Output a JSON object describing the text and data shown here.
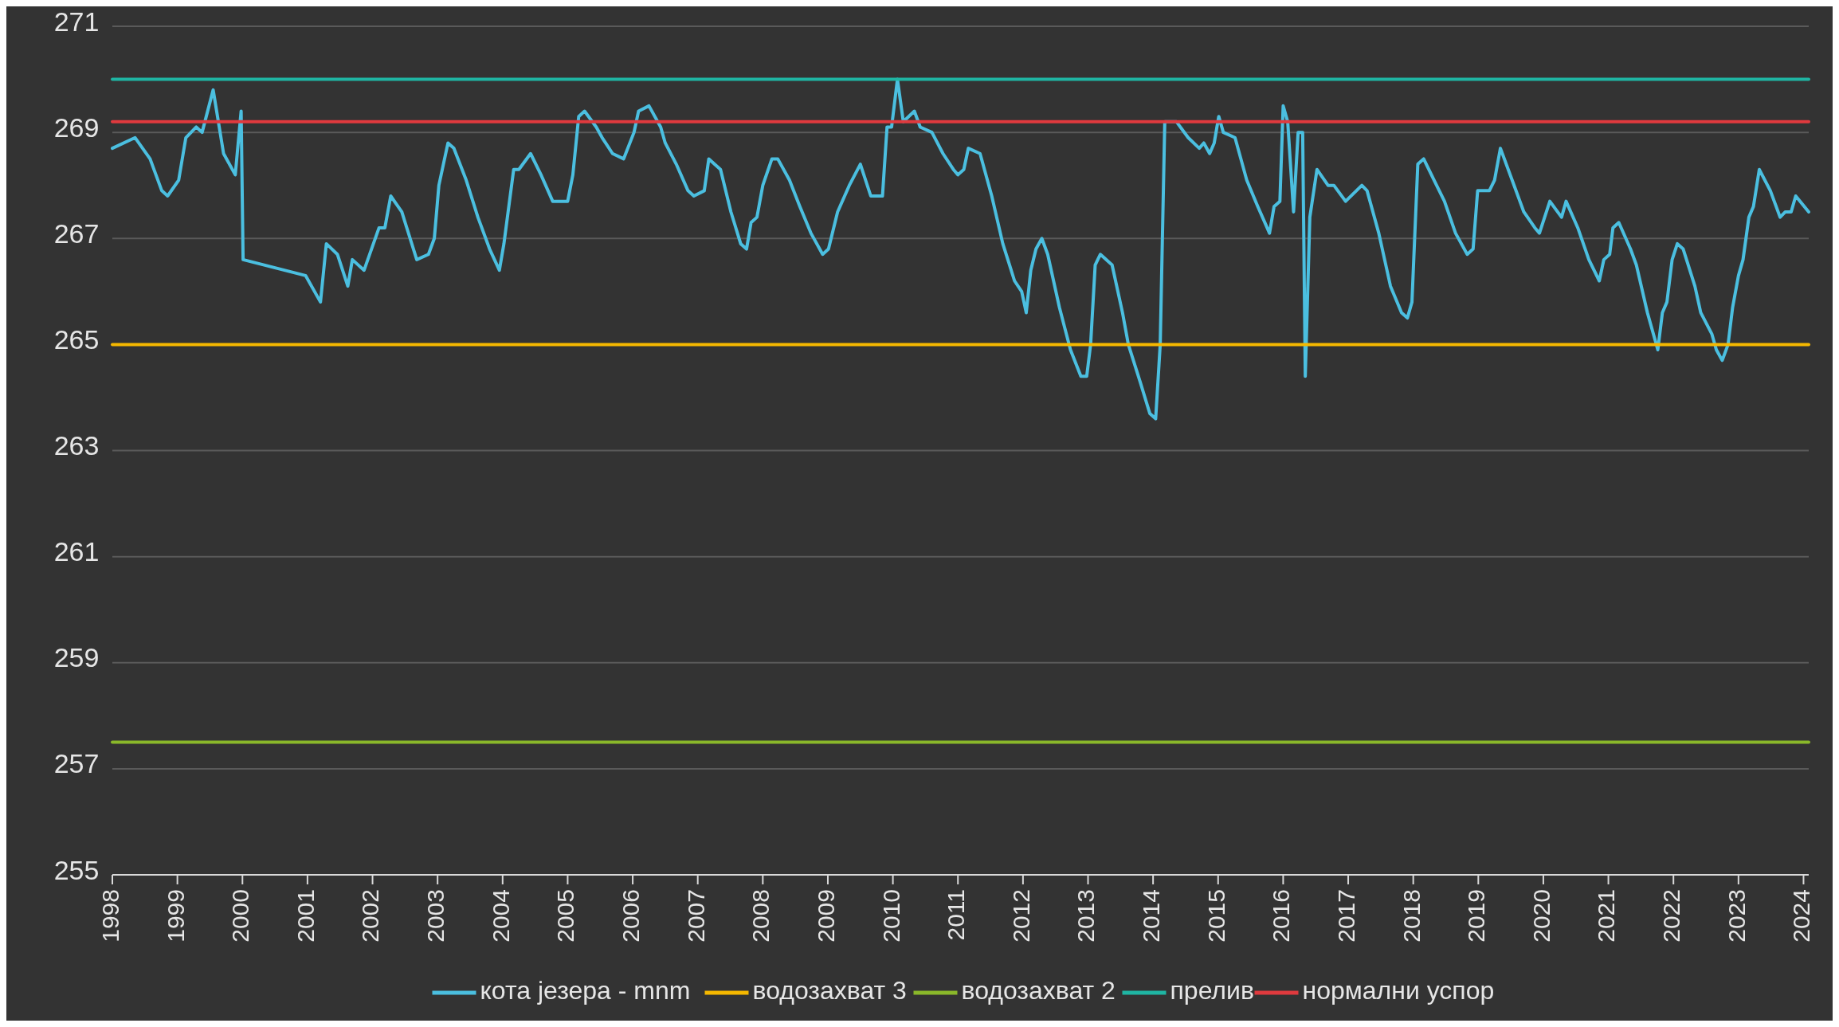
{
  "chart_data": {
    "type": "line",
    "xlim": [
      1998,
      2024.08
    ],
    "xticks": [
      1998,
      1999,
      2000,
      2001,
      2002,
      2003,
      2004,
      2005,
      2006,
      2007,
      2008,
      2009,
      2010,
      2011,
      2012,
      2013,
      2014,
      2015,
      2016,
      2017,
      2018,
      2019,
      2020,
      2021,
      2022,
      2023,
      2024
    ],
    "ylim": [
      255,
      271
    ],
    "yticks": [
      255,
      257,
      259,
      261,
      263,
      265,
      267,
      269,
      271
    ],
    "grid": "y",
    "legend": "bottom",
    "marker": "none",
    "line_style": "solid",
    "series": [
      {
        "name": "кота језера - mnm",
        "color": "#4bbfe0",
        "x": [
          1998,
          1998.35,
          1998.58,
          1998.76,
          1998.85,
          1999.02,
          1999.13,
          1999.29,
          1999.38,
          1999.55,
          1999.71,
          1999.89,
          1999.98,
          2000.01,
          2000.97,
          2001.2,
          2001.29,
          2001.46,
          2001.62,
          2001.69,
          2001.87,
          2002.1,
          2002.19,
          2002.28,
          2002.45,
          2002.68,
          2002.86,
          2002.95,
          2003.02,
          2003.16,
          2003.25,
          2003.44,
          2003.62,
          2003.8,
          2003.95,
          2004.02,
          2004.17,
          2004.25,
          2004.43,
          2004.59,
          2004.77,
          2005,
          2005.08,
          2005.17,
          2005.26,
          2005.44,
          2005.53,
          2005.69,
          2005.86,
          2006.02,
          2006.09,
          2006.25,
          2006.43,
          2006.5,
          2006.67,
          2006.85,
          2006.94,
          2007.1,
          2007.17,
          2007.35,
          2007.51,
          2007.66,
          2007.75,
          2007.82,
          2007.91,
          2008,
          2008.14,
          2008.23,
          2008.41,
          2008.57,
          2008.74,
          2008.92,
          2009.01,
          2009.15,
          2009.33,
          2009.5,
          2009.66,
          2009.84,
          2009.91,
          2009.98,
          2010.07,
          2010.16,
          2010.33,
          2010.42,
          2010.6,
          2010.77,
          2010.93,
          2011,
          2011.09,
          2011.16,
          2011.34,
          2011.52,
          2011.69,
          2011.87,
          2011.98,
          2012.05,
          2012.12,
          2012.2,
          2012.29,
          2012.38,
          2012.56,
          2012.73,
          2012.89,
          2012.98,
          2013.04,
          2013.11,
          2013.19,
          2013.37,
          2013.53,
          2013.62,
          2013.8,
          2013.95,
          2014.04,
          2014.11,
          2014.18,
          2014.36,
          2014.54,
          2014.71,
          2014.78,
          2014.87,
          2014.94,
          2015.01,
          2015.08,
          2015.26,
          2015.44,
          2015.61,
          2015.79,
          2015.86,
          2015.95,
          2016,
          2016.07,
          2016.16,
          2016.23,
          2016.3,
          2016.34,
          2016.41,
          2016.52,
          2016.69,
          2016.78,
          2016.96,
          2017.21,
          2017.29,
          2017.47,
          2017.65,
          2017.82,
          2017.91,
          2017.98,
          2018.07,
          2018.16,
          2018.32,
          2018.48,
          2018.65,
          2018.83,
          2018.92,
          2018.99,
          2019.17,
          2019.25,
          2019.34,
          2019.52,
          2019.7,
          2019.87,
          2019.94,
          2020.1,
          2020.28,
          2020.35,
          2020.53,
          2020.7,
          2020.86,
          2020.93,
          2021.02,
          2021.07,
          2021.16,
          2021.34,
          2021.43,
          2021.6,
          2021.76,
          2021.83,
          2021.9,
          2021.98,
          2022.06,
          2022.15,
          2022.33,
          2022.42,
          2022.59,
          2022.66,
          2022.75,
          2022.84,
          2022.91,
          2023,
          2023.07,
          2023.16,
          2023.23,
          2023.32,
          2023.49,
          2023.64,
          2023.72,
          2023.81,
          2023.88,
          2024.08
        ],
        "values": [
          268.7,
          268.9,
          268.5,
          267.9,
          267.8,
          268.1,
          268.9,
          269.1,
          269.0,
          269.8,
          268.6,
          268.2,
          269.4,
          266.6,
          266.3,
          265.8,
          266.9,
          266.7,
          266.1,
          266.6,
          266.4,
          267.2,
          267.2,
          267.8,
          267.5,
          266.6,
          266.7,
          267.0,
          268.0,
          268.8,
          268.7,
          268.1,
          267.4,
          266.8,
          266.4,
          266.9,
          268.3,
          268.3,
          268.6,
          268.2,
          267.7,
          267.7,
          268.2,
          269.3,
          269.4,
          269.1,
          268.9,
          268.6,
          268.5,
          269.0,
          269.4,
          269.5,
          269.1,
          268.8,
          268.4,
          267.9,
          267.8,
          267.9,
          268.5,
          268.3,
          267.5,
          266.9,
          266.8,
          267.3,
          267.4,
          268.0,
          268.5,
          268.5,
          268.1,
          267.6,
          267.1,
          266.7,
          266.8,
          267.5,
          268.0,
          268.4,
          267.8,
          267.8,
          269.1,
          269.1,
          270.0,
          269.2,
          269.4,
          269.1,
          269.0,
          268.6,
          268.3,
          268.2,
          268.3,
          268.7,
          268.6,
          267.8,
          266.9,
          266.2,
          266.0,
          265.6,
          266.4,
          266.8,
          267.0,
          266.7,
          265.7,
          264.9,
          264.4,
          264.4,
          265.0,
          266.5,
          266.7,
          266.5,
          265.6,
          265.0,
          264.3,
          263.7,
          263.6,
          265.0,
          269.2,
          269.2,
          268.9,
          268.7,
          268.8,
          268.6,
          268.8,
          269.3,
          269.0,
          268.9,
          268.1,
          267.6,
          267.1,
          267.6,
          267.7,
          269.5,
          269.2,
          267.5,
          269.0,
          269.0,
          264.4,
          267.4,
          268.3,
          268.0,
          268.0,
          267.7,
          268.0,
          267.9,
          267.1,
          266.1,
          265.6,
          265.5,
          265.8,
          268.4,
          268.5,
          268.1,
          267.7,
          267.1,
          266.7,
          266.8,
          267.9,
          267.9,
          268.1,
          268.7,
          268.1,
          267.5,
          267.2,
          267.1,
          267.7,
          267.4,
          267.7,
          267.2,
          266.6,
          266.2,
          266.6,
          266.7,
          267.2,
          267.3,
          266.8,
          266.5,
          265.6,
          264.9,
          265.6,
          265.8,
          266.6,
          266.9,
          266.8,
          266.1,
          265.6,
          265.2,
          264.9,
          264.7,
          265.0,
          265.7,
          266.3,
          266.6,
          267.4,
          267.6,
          268.3,
          267.9,
          267.4,
          267.5,
          267.5,
          267.8,
          267.5
        ]
      },
      {
        "name": "водозахват 3",
        "color": "#f5b800",
        "x": [
          1998,
          2024.08
        ],
        "values": [
          265,
          265
        ]
      },
      {
        "name": "водозахват 2",
        "color": "#8ab82a",
        "x": [
          1998,
          2024.08
        ],
        "values": [
          257.5,
          257.5
        ]
      },
      {
        "name": "прелив",
        "color": "#1fb5a3",
        "x": [
          1998,
          2024.08
        ],
        "values": [
          270,
          270
        ]
      },
      {
        "name": "нормални успор",
        "color": "#e03a3e",
        "x": [
          1998,
          2024.08
        ],
        "values": [
          269.2,
          269.2
        ]
      }
    ]
  }
}
